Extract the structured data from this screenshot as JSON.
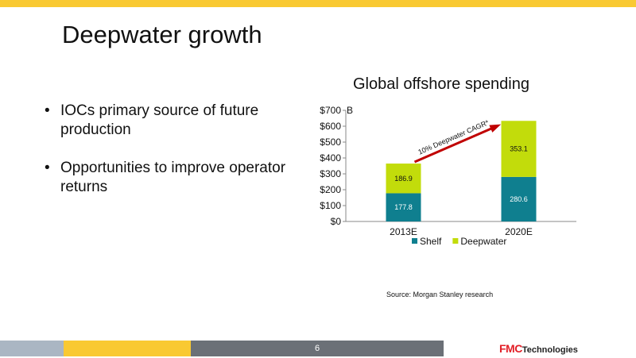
{
  "slide": {
    "title": "Deepwater growth",
    "bullets": [
      "IOCs primary source of future production",
      "Opportunities to improve operator returns"
    ],
    "source": "Source:  Morgan Stanley research",
    "page_number": "6",
    "logo_fmc": "FMC",
    "logo_tech": "Technologies"
  },
  "colors": {
    "top_bar": "#f9c932",
    "shelf": "#0f7f8f",
    "deepwater": "#c2dc0b",
    "arrow": "#c00000",
    "footer_gray": "#6b7077"
  },
  "chart_data": {
    "type": "bar",
    "stacked": true,
    "title": "Global offshore spending",
    "y_unit_label": "B",
    "categories": [
      "2013E",
      "2020E"
    ],
    "series": [
      {
        "name": "Shelf",
        "values": [
          177.8,
          280.6
        ],
        "labels": [
          "177.8",
          "280.6"
        ]
      },
      {
        "name": "Deepwater",
        "values": [
          186.9,
          353.1
        ],
        "labels": [
          "186.9",
          "353.1"
        ]
      }
    ],
    "ylim": [
      0,
      700
    ],
    "yticks": [
      "$0",
      "$100",
      "$200",
      "$300",
      "$400",
      "$500",
      "$600",
      "$700"
    ],
    "annotation": "10% Deepwater CAGR*",
    "legend_position": "bottom",
    "grid": false
  }
}
